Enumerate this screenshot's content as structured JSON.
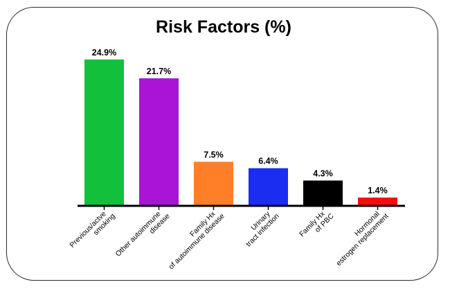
{
  "chart_data": {
    "type": "bar",
    "title": "Risk Factors (%)",
    "xlabel": "",
    "ylabel": "",
    "ylim": [
      0,
      27
    ],
    "grid": false,
    "legend": "none",
    "categories": [
      [
        "Previous/actve",
        "smoking"
      ],
      [
        "Other autoimmune",
        "disease"
      ],
      [
        "Family Hx",
        "of autoimmune disease"
      ],
      [
        "Urinary",
        "tract infection"
      ],
      [
        "Family Hx",
        "of PBC"
      ],
      [
        "Hormonal",
        "estrogen replacement"
      ]
    ],
    "values": [
      24.9,
      21.7,
      7.5,
      6.4,
      4.3,
      1.4
    ],
    "data_labels": [
      "24.9%",
      "21.7%",
      "7.5%",
      "6.4%",
      "4.3%",
      "1.4%"
    ],
    "colors": [
      "#12c13b",
      "#aa14d7",
      "#fe7f27",
      "#1b2df0",
      "#000000",
      "#f50d0d"
    ]
  }
}
